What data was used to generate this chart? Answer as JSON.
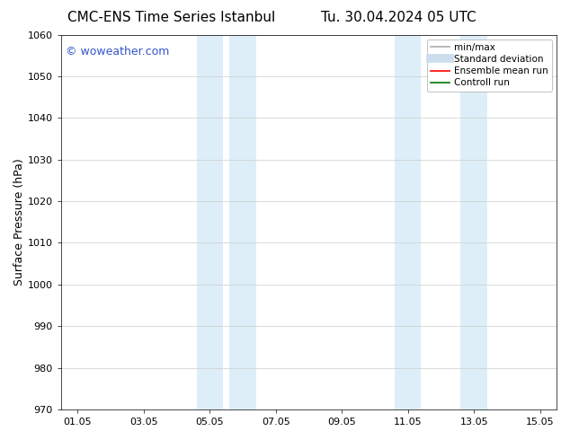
{
  "title_left": "CMC-ENS Time Series Istanbul",
  "title_right": "Tu. 30.04.2024 05 UTC",
  "ylabel": "Surface Pressure (hPa)",
  "ylim": [
    970,
    1060
  ],
  "yticks": [
    970,
    980,
    990,
    1000,
    1010,
    1020,
    1030,
    1040,
    1050,
    1060
  ],
  "xtick_labels": [
    "01.05",
    "03.05",
    "05.05",
    "07.05",
    "09.05",
    "11.05",
    "13.05",
    "15.05"
  ],
  "xtick_positions": [
    0,
    2,
    4,
    6,
    8,
    10,
    12,
    14
  ],
  "xlim": [
    -0.5,
    14.5
  ],
  "shaded_bands": [
    {
      "x_start": 3.6,
      "x_end": 4.4,
      "color": "#ddeef8"
    },
    {
      "x_start": 4.6,
      "x_end": 5.4,
      "color": "#ddeef8"
    },
    {
      "x_start": 9.6,
      "x_end": 10.4,
      "color": "#ddeef8"
    },
    {
      "x_start": 11.6,
      "x_end": 12.4,
      "color": "#ddeef8"
    }
  ],
  "watermark_text": "© woweather.com",
  "watermark_color": "#3355cc",
  "background_color": "#ffffff",
  "legend_items": [
    {
      "label": "min/max",
      "color": "#aaaaaa",
      "lw": 1.2,
      "style": "solid"
    },
    {
      "label": "Standard deviation",
      "color": "#ccddee",
      "lw": 7,
      "style": "solid"
    },
    {
      "label": "Ensemble mean run",
      "color": "#ff0000",
      "lw": 1.2,
      "style": "solid"
    },
    {
      "label": "Controll run",
      "color": "#007700",
      "lw": 1.2,
      "style": "solid"
    }
  ],
  "title_fontsize": 11,
  "tick_fontsize": 8,
  "label_fontsize": 9,
  "legend_fontsize": 7.5
}
